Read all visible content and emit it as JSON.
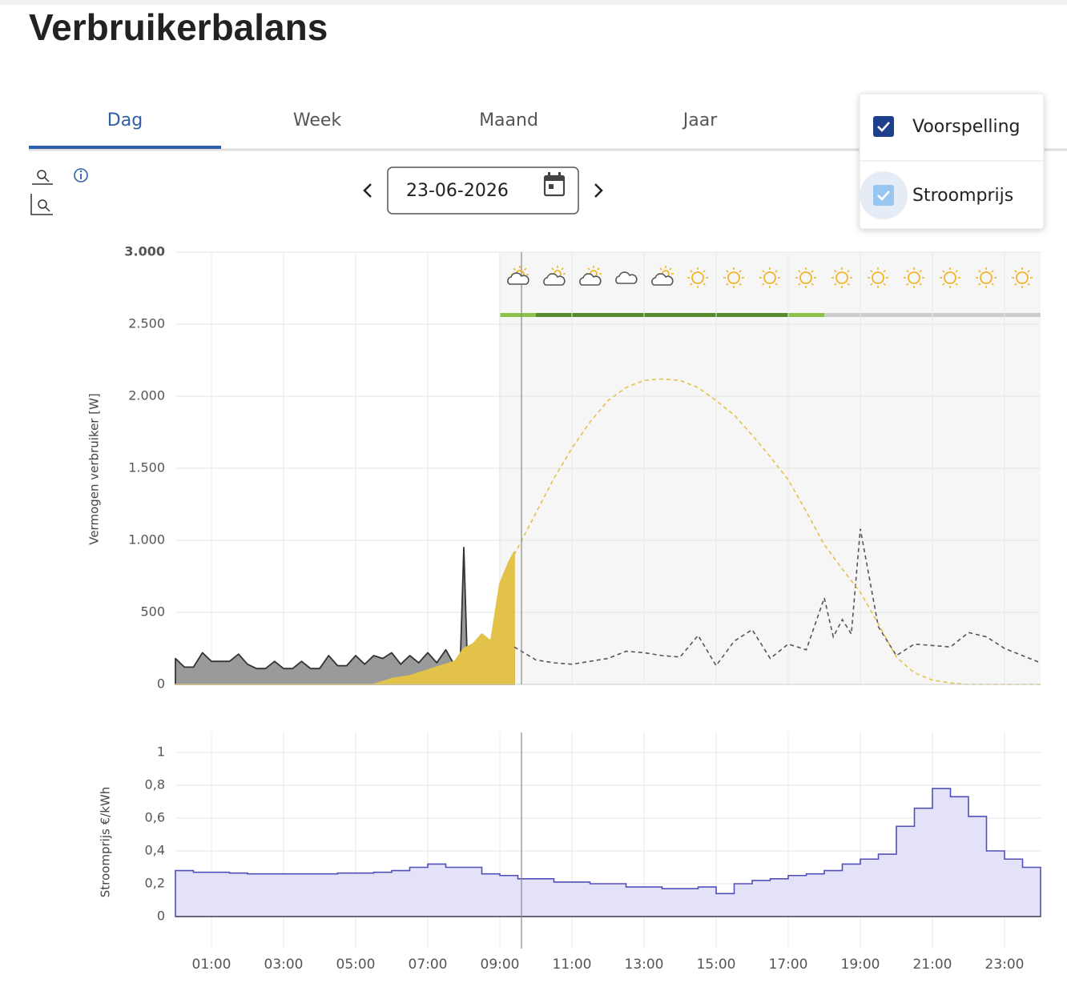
{
  "header": {
    "title": "Verbruikerbalans"
  },
  "tabs": [
    "Dag",
    "Week",
    "Maand",
    "Jaar"
  ],
  "date": "23-06-2026",
  "options": [
    {
      "label": "Voorspelling",
      "checked": true
    },
    {
      "label": "Stroomprijs",
      "checked": true
    }
  ],
  "chart_data": [
    {
      "type": "area",
      "y_label": "Vermogen verbruiker [W]",
      "xlim": [
        0,
        24
      ],
      "ylim": [
        0,
        3000
      ],
      "yticks": [
        0,
        500,
        {
          "value": 1000,
          "label": "1.000"
        },
        {
          "value": 1500,
          "label": "1.500"
        },
        {
          "value": 2000,
          "label": "2.000"
        },
        {
          "value": 2500,
          "label": "2.500"
        },
        {
          "value": 3000,
          "label": "3.000"
        }
      ],
      "grid": true,
      "series": [
        {
          "style": "area",
          "fill": "#9a9a9a",
          "color": "#333333",
          "x": [
            0,
            0.25,
            0.5,
            0.75,
            1,
            1.25,
            1.5,
            1.75,
            2,
            2.25,
            2.5,
            2.75,
            3,
            3.25,
            3.5,
            3.75,
            4,
            4.25,
            4.5,
            4.75,
            5,
            5.25,
            5.5,
            5.75,
            6,
            6.25,
            6.5,
            6.75,
            7,
            7.25,
            7.5,
            7.75,
            7.9,
            8,
            8.1,
            8.25,
            8.5,
            8.75,
            9,
            9.25,
            9.4
          ],
          "values": [
            180,
            120,
            120,
            220,
            160,
            160,
            160,
            210,
            140,
            110,
            110,
            160,
            110,
            110,
            160,
            110,
            110,
            200,
            130,
            130,
            200,
            140,
            200,
            180,
            220,
            140,
            200,
            150,
            220,
            150,
            240,
            130,
            130,
            950,
            130,
            150,
            250,
            140,
            310,
            250,
            260
          ]
        },
        {
          "style": "area",
          "fill": "#e3c24a",
          "color": "#e3c24a",
          "x": [
            0,
            5.5,
            5.75,
            6,
            6.25,
            6.5,
            6.75,
            7,
            7.25,
            7.5,
            7.75,
            8,
            8.25,
            8.5,
            8.75,
            9,
            9.25,
            9.4
          ],
          "values": [
            0,
            0,
            20,
            40,
            50,
            60,
            80,
            100,
            120,
            140,
            160,
            250,
            280,
            350,
            300,
            700,
            850,
            920
          ]
        },
        {
          "style": "dashed",
          "color": "#555555",
          "x": [
            9.4,
            10,
            10.5,
            11,
            11.5,
            12,
            12.5,
            13,
            13.5,
            14,
            14.5,
            15,
            15.5,
            16,
            16.5,
            17,
            17.5,
            18,
            18.25,
            18.5,
            18.75,
            19,
            19.5,
            20,
            20.5,
            21,
            21.5,
            22,
            22.5,
            23,
            23.5,
            24
          ],
          "values": [
            260,
            170,
            150,
            140,
            160,
            180,
            230,
            220,
            200,
            190,
            340,
            130,
            300,
            380,
            180,
            280,
            240,
            600,
            330,
            450,
            350,
            1080,
            400,
            200,
            280,
            270,
            260,
            360,
            330,
            250,
            200,
            150
          ]
        },
        {
          "style": "dashed",
          "color": "#e3c24a",
          "x": [
            9.4,
            10,
            10.5,
            11,
            11.5,
            12,
            12.5,
            13,
            13.5,
            14,
            14.5,
            15,
            15.5,
            16,
            16.5,
            17,
            17.5,
            18,
            18.5,
            19,
            19.5,
            20,
            20.5,
            21,
            21.5,
            22,
            22.5,
            23,
            23.5,
            24
          ],
          "values": [
            900,
            1190,
            1430,
            1640,
            1820,
            1970,
            2060,
            2110,
            2120,
            2110,
            2060,
            1970,
            1870,
            1730,
            1580,
            1420,
            1200,
            970,
            800,
            640,
            420,
            190,
            80,
            30,
            10,
            0,
            0,
            0,
            0,
            0
          ]
        }
      ]
    },
    {
      "type": "step",
      "y_label": "Stroomprijs €/kWh",
      "xlim": [
        0,
        24
      ],
      "ylim": [
        0,
        1
      ],
      "yticks": [
        0,
        {
          "value": 0.2,
          "label": "0,2"
        },
        {
          "value": 0.4,
          "label": "0,4"
        },
        {
          "value": 0.6,
          "label": "0,6"
        },
        {
          "value": 0.8,
          "label": "0,8"
        },
        1
      ],
      "xticks": [
        {
          "value": 1,
          "label": "01:00"
        },
        {
          "value": 3,
          "label": "03:00"
        },
        {
          "value": 5,
          "label": "05:00"
        },
        {
          "value": 7,
          "label": "07:00"
        },
        {
          "value": 9,
          "label": "09:00"
        },
        {
          "value": 11,
          "label": "11:00"
        },
        {
          "value": 13,
          "label": "13:00"
        },
        {
          "value": 15,
          "label": "15:00"
        },
        {
          "value": 17,
          "label": "17:00"
        },
        {
          "value": 19,
          "label": "19:00"
        },
        {
          "value": 21,
          "label": "21:00"
        },
        {
          "value": 23,
          "label": "23:00"
        }
      ],
      "grid": true,
      "series": [
        {
          "color": "#5050b8",
          "fill": "#e4e2f8",
          "x": [
            0,
            0.5,
            1,
            1.5,
            2,
            2.5,
            3,
            3.5,
            4,
            4.5,
            5,
            5.5,
            6,
            6.5,
            7,
            7.5,
            8,
            8.5,
            9,
            9.5,
            10,
            10.5,
            11,
            11.5,
            12,
            12.5,
            13,
            13.5,
            14,
            14.5,
            15,
            15.5,
            16,
            16.5,
            17,
            17.5,
            18,
            18.5,
            19,
            19.5,
            20,
            20.5,
            21,
            21.5,
            22,
            22.5,
            23,
            23.5
          ],
          "values": [
            0.28,
            0.27,
            0.27,
            0.265,
            0.26,
            0.26,
            0.26,
            0.26,
            0.26,
            0.265,
            0.265,
            0.27,
            0.28,
            0.3,
            0.32,
            0.3,
            0.3,
            0.26,
            0.25,
            0.23,
            0.23,
            0.21,
            0.21,
            0.2,
            0.2,
            0.18,
            0.18,
            0.17,
            0.17,
            0.18,
            0.14,
            0.2,
            0.22,
            0.23,
            0.25,
            0.26,
            0.28,
            0.32,
            0.35,
            0.38,
            0.55,
            0.66,
            0.78,
            0.73,
            0.61,
            0.4,
            0.35,
            0.3
          ]
        }
      ]
    }
  ]
}
